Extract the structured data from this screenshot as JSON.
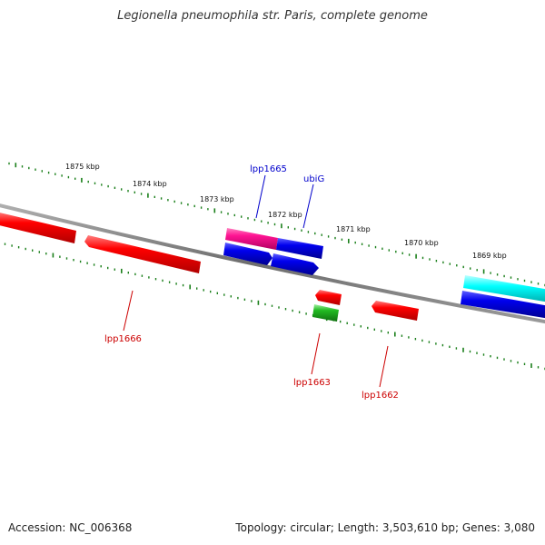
{
  "title": "Legionella pneumophila str. Paris, complete genome",
  "footer": {
    "accession": "Accession: NC_006368",
    "summary": "Topology: circular; Length: 3,503,610 bp; Genes: 3,080"
  },
  "colors": {
    "backbone": "#808080",
    "tick": "#1a7f1a",
    "red": "#ff0000",
    "blue": "#0000ee",
    "magenta": "#ff1493",
    "cyan": "#00ffff",
    "green": "#22bb22",
    "label_blue": "#0000cc",
    "label_red": "#cc0000"
  },
  "kbp_labels": [
    "1875 kbp",
    "1874 kbp",
    "1873 kbp",
    "1872 kbp",
    "1871 kbp",
    "1870 kbp",
    "1869 kbp"
  ],
  "gene_labels": [
    {
      "name": "lpp1665",
      "color": "label_blue"
    },
    {
      "name": "ubiG",
      "color": "label_blue"
    },
    {
      "name": "lpp1666",
      "color": "label_red"
    },
    {
      "name": "lpp1663",
      "color": "label_red"
    },
    {
      "name": "lpp1662",
      "color": "label_red"
    }
  ]
}
